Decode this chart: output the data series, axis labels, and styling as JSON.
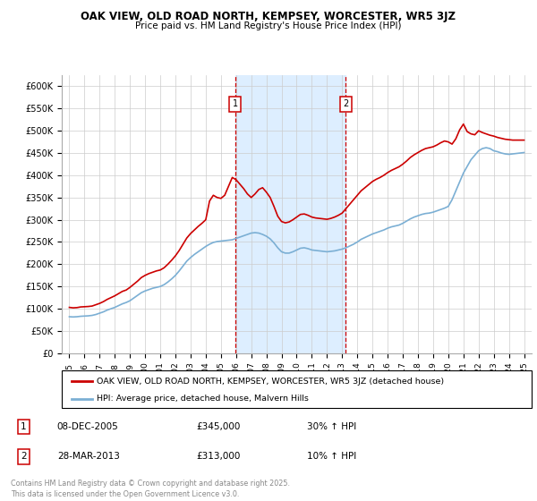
{
  "title": "OAK VIEW, OLD ROAD NORTH, KEMPSEY, WORCESTER, WR5 3JZ",
  "subtitle": "Price paid vs. HM Land Registry's House Price Index (HPI)",
  "ylim": [
    0,
    625000
  ],
  "yticks": [
    0,
    50000,
    100000,
    150000,
    200000,
    250000,
    300000,
    350000,
    400000,
    450000,
    500000,
    550000,
    600000
  ],
  "ytick_labels": [
    "£0",
    "£50K",
    "£100K",
    "£150K",
    "£200K",
    "£250K",
    "£300K",
    "£350K",
    "£400K",
    "£450K",
    "£500K",
    "£550K",
    "£600K"
  ],
  "xlim_start": 1994.5,
  "xlim_end": 2025.5,
  "sale1_x": 2005.93,
  "sale1_y": 345000,
  "sale1_label": "1",
  "sale1_date": "08-DEC-2005",
  "sale1_price": "£345,000",
  "sale1_hpi": "30% ↑ HPI",
  "sale2_x": 2013.24,
  "sale2_y": 313000,
  "sale2_label": "2",
  "sale2_date": "28-MAR-2013",
  "sale2_price": "£313,000",
  "sale2_hpi": "10% ↑ HPI",
  "red_line_color": "#cc0000",
  "blue_line_color": "#7BAFD4",
  "shade_color": "#ddeeff",
  "grid_color": "#cccccc",
  "background_color": "#ffffff",
  "legend_label_red": "OAK VIEW, OLD ROAD NORTH, KEMPSEY, WORCESTER, WR5 3JZ (detached house)",
  "legend_label_blue": "HPI: Average price, detached house, Malvern Hills",
  "footer": "Contains HM Land Registry data © Crown copyright and database right 2025.\nThis data is licensed under the Open Government Licence v3.0.",
  "hpi_data_x": [
    1995.0,
    1995.25,
    1995.5,
    1995.75,
    1996.0,
    1996.25,
    1996.5,
    1996.75,
    1997.0,
    1997.25,
    1997.5,
    1997.75,
    1998.0,
    1998.25,
    1998.5,
    1998.75,
    1999.0,
    1999.25,
    1999.5,
    1999.75,
    2000.0,
    2000.25,
    2000.5,
    2000.75,
    2001.0,
    2001.25,
    2001.5,
    2001.75,
    2002.0,
    2002.25,
    2002.5,
    2002.75,
    2003.0,
    2003.25,
    2003.5,
    2003.75,
    2004.0,
    2004.25,
    2004.5,
    2004.75,
    2005.0,
    2005.25,
    2005.5,
    2005.75,
    2006.0,
    2006.25,
    2006.5,
    2006.75,
    2007.0,
    2007.25,
    2007.5,
    2007.75,
    2008.0,
    2008.25,
    2008.5,
    2008.75,
    2009.0,
    2009.25,
    2009.5,
    2009.75,
    2010.0,
    2010.25,
    2010.5,
    2010.75,
    2011.0,
    2011.25,
    2011.5,
    2011.75,
    2012.0,
    2012.25,
    2012.5,
    2012.75,
    2013.0,
    2013.25,
    2013.5,
    2013.75,
    2014.0,
    2014.25,
    2014.5,
    2014.75,
    2015.0,
    2015.25,
    2015.5,
    2015.75,
    2016.0,
    2016.25,
    2016.5,
    2016.75,
    2017.0,
    2017.25,
    2017.5,
    2017.75,
    2018.0,
    2018.25,
    2018.5,
    2018.75,
    2019.0,
    2019.25,
    2019.5,
    2019.75,
    2020.0,
    2020.25,
    2020.5,
    2020.75,
    2021.0,
    2021.25,
    2021.5,
    2021.75,
    2022.0,
    2022.25,
    2022.5,
    2022.75,
    2023.0,
    2023.25,
    2023.5,
    2023.75,
    2024.0,
    2024.25,
    2024.5,
    2024.75,
    2025.0
  ],
  "hpi_data_y": [
    82000,
    81500,
    82000,
    83000,
    83500,
    84000,
    85000,
    87000,
    90000,
    93000,
    97000,
    100000,
    103000,
    107000,
    111000,
    114000,
    118000,
    124000,
    130000,
    136000,
    140000,
    143000,
    146000,
    148000,
    150000,
    154000,
    160000,
    167000,
    175000,
    185000,
    196000,
    207000,
    215000,
    222000,
    228000,
    234000,
    240000,
    245000,
    249000,
    251000,
    252000,
    253000,
    254000,
    255000,
    258000,
    261000,
    264000,
    267000,
    270000,
    271000,
    270000,
    267000,
    263000,
    257000,
    248000,
    237000,
    228000,
    225000,
    225000,
    228000,
    232000,
    236000,
    237000,
    235000,
    232000,
    231000,
    230000,
    229000,
    228000,
    229000,
    230000,
    232000,
    234000,
    237000,
    241000,
    245000,
    250000,
    256000,
    260000,
    264000,
    268000,
    271000,
    274000,
    277000,
    281000,
    284000,
    286000,
    288000,
    292000,
    297000,
    302000,
    306000,
    309000,
    312000,
    314000,
    315000,
    317000,
    320000,
    323000,
    326000,
    330000,
    345000,
    365000,
    385000,
    405000,
    420000,
    435000,
    445000,
    455000,
    460000,
    462000,
    460000,
    455000,
    453000,
    450000,
    448000,
    447000,
    448000,
    449000,
    450000,
    451000
  ],
  "red_data_x": [
    1995.0,
    1995.25,
    1995.5,
    1995.75,
    1996.0,
    1996.25,
    1996.5,
    1996.75,
    1997.0,
    1997.25,
    1997.5,
    1997.75,
    1998.0,
    1998.25,
    1998.5,
    1998.75,
    1999.0,
    1999.25,
    1999.5,
    1999.75,
    2000.0,
    2000.25,
    2000.5,
    2000.75,
    2001.0,
    2001.25,
    2001.5,
    2001.75,
    2002.0,
    2002.25,
    2002.5,
    2002.75,
    2003.0,
    2003.25,
    2003.5,
    2003.75,
    2004.0,
    2004.25,
    2004.5,
    2004.75,
    2005.0,
    2005.25,
    2005.5,
    2005.75,
    2006.0,
    2006.25,
    2006.5,
    2006.75,
    2007.0,
    2007.25,
    2007.5,
    2007.75,
    2008.0,
    2008.25,
    2008.5,
    2008.75,
    2009.0,
    2009.25,
    2009.5,
    2009.75,
    2010.0,
    2010.25,
    2010.5,
    2010.75,
    2011.0,
    2011.25,
    2011.5,
    2011.75,
    2012.0,
    2012.25,
    2012.5,
    2012.75,
    2013.0,
    2013.25,
    2013.5,
    2013.75,
    2014.0,
    2014.25,
    2014.5,
    2014.75,
    2015.0,
    2015.25,
    2015.5,
    2015.75,
    2016.0,
    2016.25,
    2016.5,
    2016.75,
    2017.0,
    2017.25,
    2017.5,
    2017.75,
    2018.0,
    2018.25,
    2018.5,
    2018.75,
    2019.0,
    2019.25,
    2019.5,
    2019.75,
    2020.0,
    2020.25,
    2020.5,
    2020.75,
    2021.0,
    2021.25,
    2021.5,
    2021.75,
    2022.0,
    2022.25,
    2022.5,
    2022.75,
    2023.0,
    2023.25,
    2023.5,
    2023.75,
    2024.0,
    2024.25,
    2024.5,
    2024.75,
    2025.0
  ],
  "red_data_y": [
    103000,
    102000,
    102500,
    104000,
    104500,
    105000,
    106000,
    109000,
    112000,
    116000,
    121000,
    125000,
    129000,
    134000,
    139000,
    142000,
    148000,
    155000,
    162000,
    170000,
    175000,
    179000,
    182000,
    185000,
    187000,
    192000,
    200000,
    209000,
    219000,
    231000,
    245000,
    259000,
    269000,
    277000,
    285000,
    292000,
    300000,
    342000,
    355000,
    350000,
    348000,
    355000,
    375000,
    395000,
    390000,
    380000,
    370000,
    358000,
    350000,
    358000,
    368000,
    372000,
    362000,
    350000,
    330000,
    308000,
    296000,
    293000,
    295000,
    300000,
    306000,
    312000,
    313000,
    310000,
    306000,
    304000,
    303000,
    302000,
    301000,
    303000,
    306000,
    310000,
    315000,
    325000,
    335000,
    345000,
    355000,
    365000,
    372000,
    379000,
    386000,
    391000,
    395000,
    400000,
    406000,
    411000,
    415000,
    419000,
    425000,
    432000,
    440000,
    446000,
    451000,
    456000,
    460000,
    462000,
    464000,
    468000,
    473000,
    477000,
    475000,
    470000,
    482000,
    502000,
    515000,
    498000,
    493000,
    491000,
    500000,
    496000,
    493000,
    490000,
    488000,
    485000,
    483000,
    481000,
    480000,
    479000,
    479000,
    479000,
    479000
  ]
}
